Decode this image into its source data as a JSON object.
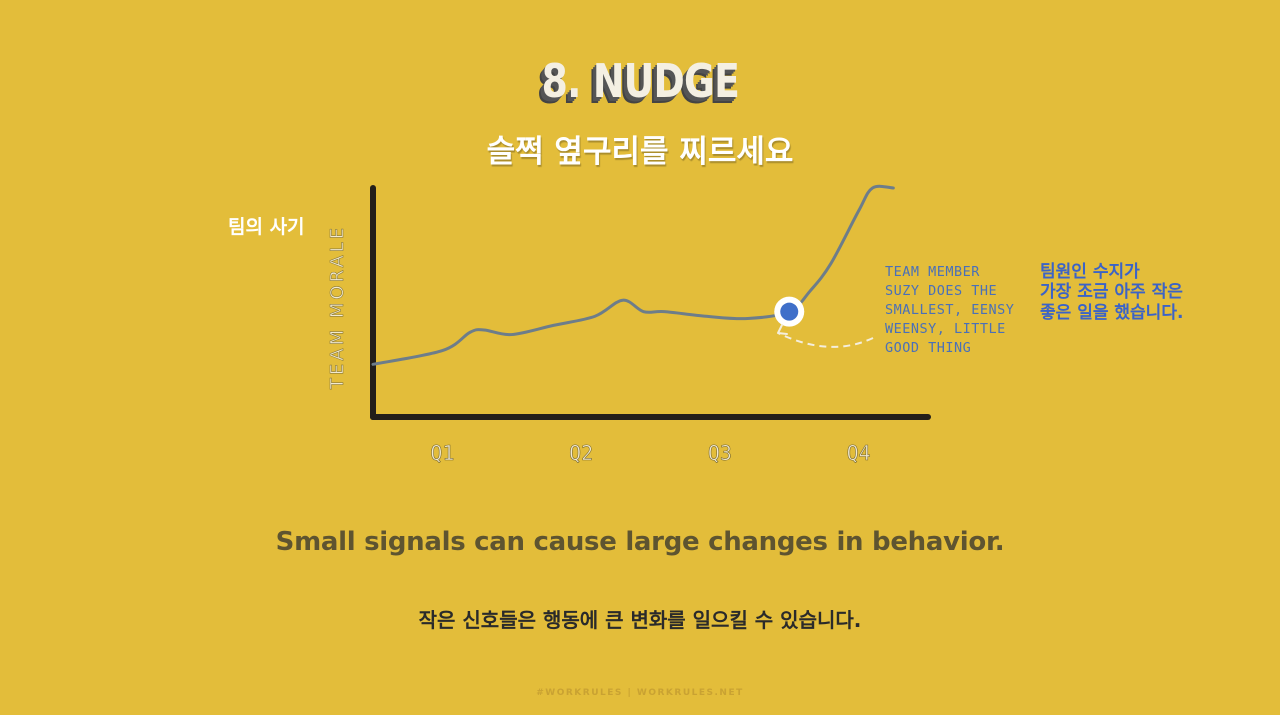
{
  "title": "8. NUDGE",
  "title_ko": "슬쩍 옆구리를 찌르세요",
  "ylabel_ko": "팀의 사기",
  "annotation_ko": "팀원인 수지가\n가장 조금 아주 작은\n좋은 일을 했습니다.",
  "subtitle": "Small signals can cause large changes in behavior.",
  "subtitle_ko": "작은 신호들은 행동에 큰 변화를 일으킬 수 있습니다.",
  "footer": "#WORKRULES  |  WORKRULES.NET",
  "colors": {
    "background": "#e3bd3a",
    "axis": "#231f1a",
    "line": "#6d7d8a",
    "marker_fill": "#3f6fc9",
    "annotation": "#4a70b8"
  },
  "chart_data": {
    "type": "line",
    "xlabel": "",
    "ylabel": "TEAM  MORALE",
    "x_ticks": [
      "Q1",
      "Q2",
      "Q3",
      "Q4"
    ],
    "x_tick_positions": [
      1,
      2,
      3,
      4
    ],
    "xlim": [
      0.5,
      4.5
    ],
    "ylim": [
      0,
      100
    ],
    "grid": false,
    "series": [
      {
        "x": [
          0.5,
          1.0,
          1.2,
          1.3,
          1.5,
          1.8,
          2.1,
          2.3,
          2.45,
          2.6,
          2.9,
          3.2,
          3.5,
          3.65,
          3.8,
          4.0,
          4.1,
          4.25
        ],
        "y": [
          23,
          29,
          37,
          38,
          36,
          40,
          44,
          51,
          46,
          46,
          44,
          43,
          46,
          55,
          67,
          90,
          100,
          100
        ]
      }
    ],
    "highlight": {
      "x": 3.5,
      "y": 46
    },
    "annotation": {
      "text": "TEAM MEMBER\nSUZY DOES THE\nSMALLEST, EENSY\nWEENSY, LITTLE\nGOOD THING",
      "points_to": "highlight"
    }
  }
}
